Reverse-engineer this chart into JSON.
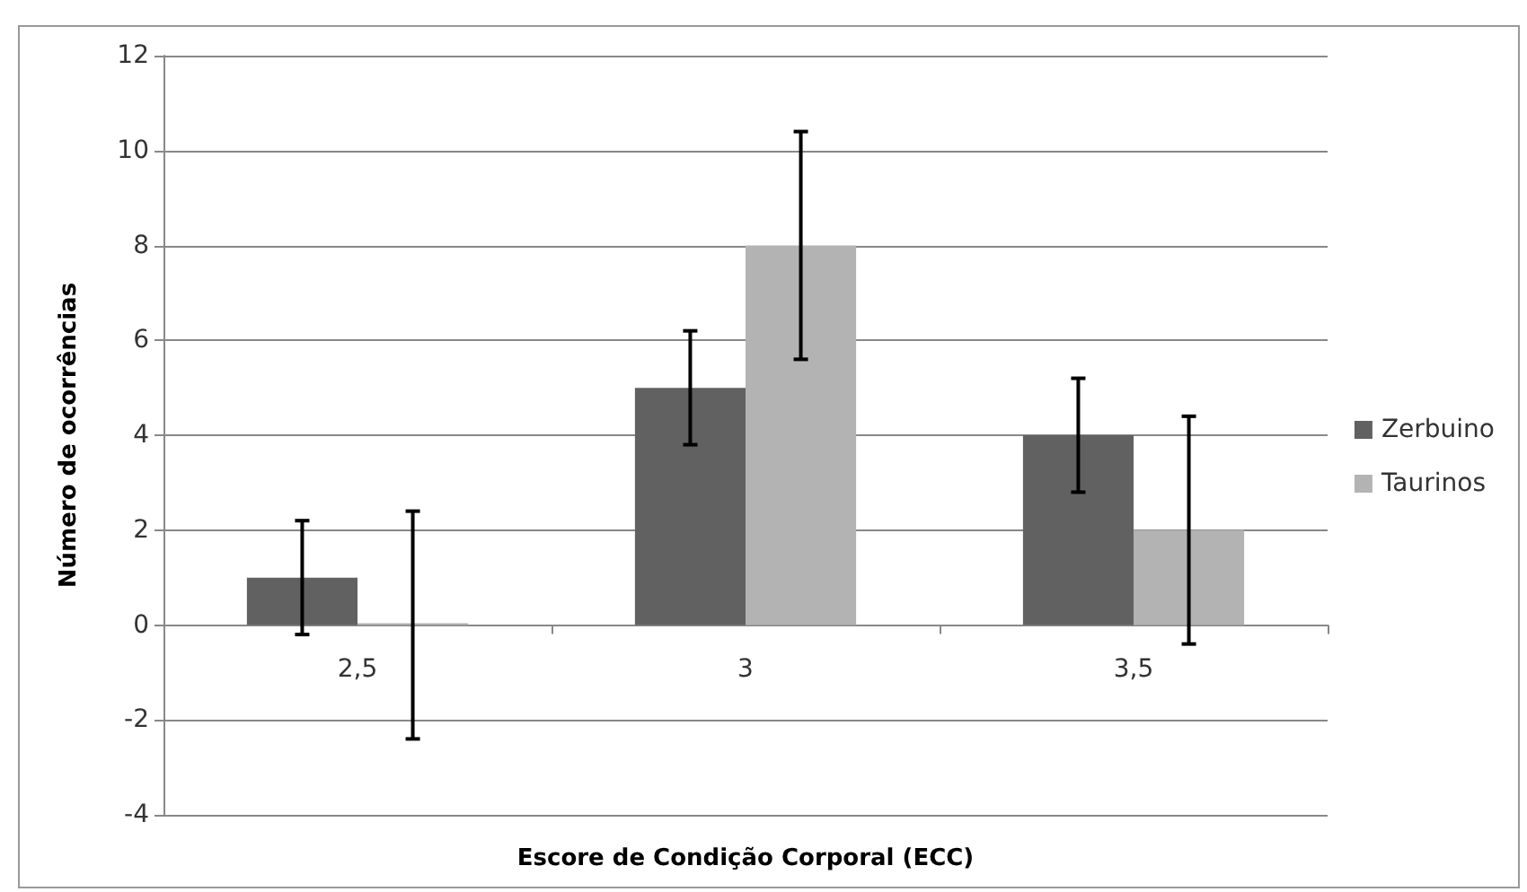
{
  "chart_data": {
    "type": "bar",
    "xlabel": "Escore de Condição Corporal (ECC)",
    "ylabel": "Número de ocorrências",
    "categories": [
      "2,5",
      "3",
      "3,5"
    ],
    "series": [
      {
        "name": "Zerbuino",
        "color": "#616161",
        "values": [
          1,
          5,
          4
        ],
        "errors": [
          1.2,
          1.2,
          1.2
        ]
      },
      {
        "name": "Taurinos",
        "color": "#b3b3b3",
        "values": [
          0,
          8,
          2
        ],
        "errors": [
          2.4,
          2.4,
          2.4
        ]
      }
    ],
    "ylim": [
      -4,
      12
    ],
    "yticks": [
      -4,
      -2,
      0,
      2,
      4,
      6,
      8,
      10,
      12
    ],
    "grid": "y",
    "legend": "right"
  }
}
